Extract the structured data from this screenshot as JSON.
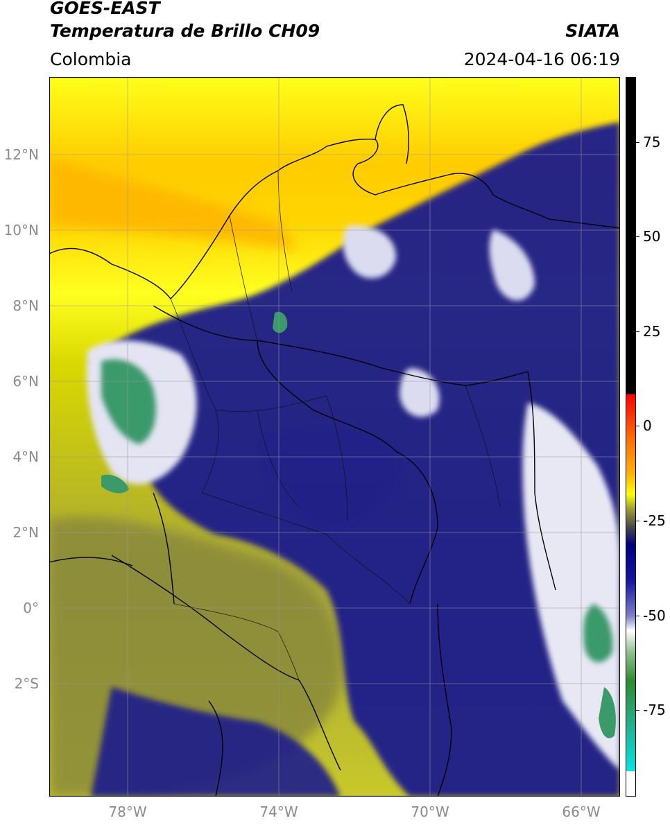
{
  "header": {
    "satellite": "GOES-EAST",
    "product": "Temperatura de Brillo CH09",
    "brand": "SIATA",
    "region": "Colombia",
    "datetime": "2024-04-16 06:19"
  },
  "map": {
    "lat_labels": [
      "12°N",
      "10°N",
      "8°N",
      "6°N",
      "4°N",
      "2°N",
      "0°",
      "2°S"
    ],
    "lon_labels": [
      "78°W",
      "74°W",
      "70°W",
      "66°W"
    ],
    "gridlines": true,
    "colors": {
      "warm_land": "#ffff00",
      "orange_band": "#ffa500",
      "olive": "#7a7a36",
      "navy": "#1a1a8a",
      "white_cloud": "#e8e8f4",
      "green_cloud": "#3a9a6a"
    }
  },
  "colorbar": {
    "labels": [
      "75",
      "50",
      "25",
      "0",
      "-25",
      "-50",
      "-75"
    ],
    "colors": {
      "top_black": "#000000",
      "red": "#ff0000",
      "orange": "#ff8c00",
      "yellow": "#ffff00",
      "olive": "#6e6e37",
      "navy": "#000080",
      "white": "#ffffff",
      "green": "#2e8b2e",
      "cyan": "#00e5e5"
    }
  }
}
